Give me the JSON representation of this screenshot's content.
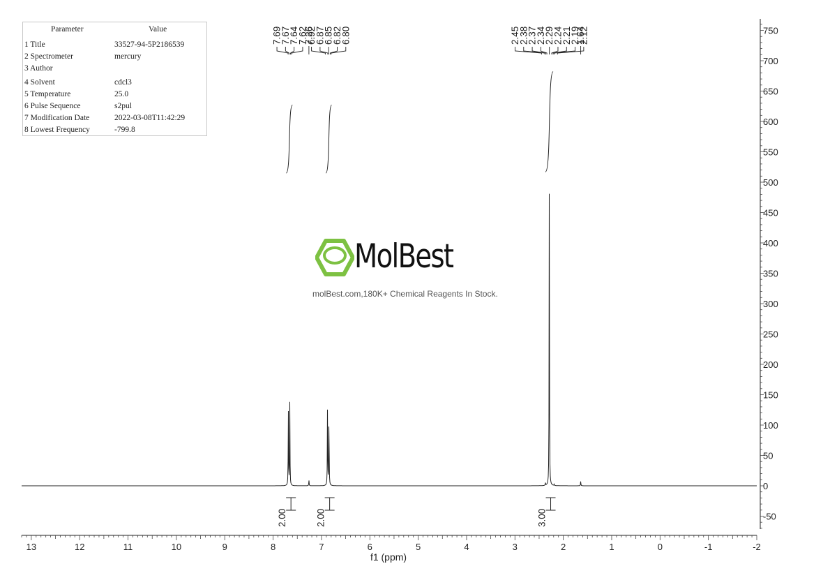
{
  "parameters": {
    "header": {
      "key": "Parameter",
      "value": "Value"
    },
    "rows": [
      {
        "key": "1 Title",
        "value": "33527-94-5P2186539"
      },
      {
        "key": "2 Spectrometer",
        "value": "mercury"
      },
      {
        "key": "3 Author",
        "value": ""
      },
      {
        "key": "4 Solvent",
        "value": "cdcl3"
      },
      {
        "key": "5 Temperature",
        "value": "25.0"
      },
      {
        "key": "6 Pulse Sequence",
        "value": "s2pul"
      },
      {
        "key": "7 Modification Date",
        "value": "2022-03-08T11:42:29"
      },
      {
        "key": "8 Lowest Frequency",
        "value": "-799.8"
      }
    ]
  },
  "watermark": {
    "brand": "MolBest",
    "tagline": "molBest.com,180K+ Chemical Reagents In Stock.",
    "color": "#7dc142"
  },
  "chart_data": {
    "type": "line",
    "xlabel": "f1 (ppm)",
    "xlim": [
      13.2,
      -2
    ],
    "ylim": [
      -75,
      770
    ],
    "x_ticks": [
      "13",
      "12",
      "11",
      "10",
      "9",
      "8",
      "7",
      "6",
      "5",
      "4",
      "3",
      "2",
      "1",
      "0",
      "-1",
      "-2"
    ],
    "y_ticks": [
      "750",
      "700",
      "650",
      "600",
      "550",
      "500",
      "450",
      "400",
      "350",
      "300",
      "250",
      "200",
      "150",
      "100",
      "50",
      "0",
      "-50"
    ],
    "peaks": [
      {
        "x": 7.685,
        "y": 130
      },
      {
        "x": 7.655,
        "y": 136
      },
      {
        "x": 7.26,
        "y": 10
      },
      {
        "x": 6.875,
        "y": 136
      },
      {
        "x": 6.845,
        "y": 130
      },
      {
        "x": 2.37,
        "y": 4
      },
      {
        "x": 2.29,
        "y": 484
      },
      {
        "x": 2.19,
        "y": 2
      },
      {
        "x": 1.64,
        "y": 8
      }
    ],
    "peak_label_groups": [
      {
        "labels": [
          "7.69",
          "7.67",
          "7.64",
          "7.62"
        ],
        "x": [
          7.69,
          7.67,
          7.64,
          7.62
        ]
      },
      {
        "labels": [
          "7.26"
        ],
        "x": [
          7.26
        ]
      },
      {
        "labels": [
          "6.92",
          "6.87",
          "6.85",
          "6.82",
          "6.80"
        ],
        "x": [
          6.92,
          6.87,
          6.85,
          6.82,
          6.8
        ]
      },
      {
        "labels": [
          "2.45",
          "2.38",
          "2.37",
          "2.34",
          "2.29",
          "2.24",
          "2.21",
          "2.19",
          "2.12"
        ],
        "x": [
          2.45,
          2.38,
          2.37,
          2.34,
          2.29,
          2.24,
          2.21,
          2.19,
          2.12
        ]
      },
      {
        "labels": [
          "1.64"
        ],
        "x": [
          1.64
        ]
      }
    ],
    "integrals": [
      {
        "label": "2.00",
        "x": 7.66,
        "from": 7.73,
        "to": 7.6,
        "y_start": 515,
        "y_end": 627
      },
      {
        "label": "2.00",
        "x": 6.86,
        "from": 6.91,
        "to": 6.79,
        "y_start": 515,
        "y_end": 627
      },
      {
        "label": "3.00",
        "x": 2.29,
        "from": 2.37,
        "to": 2.21,
        "y_start": 517,
        "y_end": 682
      }
    ]
  }
}
